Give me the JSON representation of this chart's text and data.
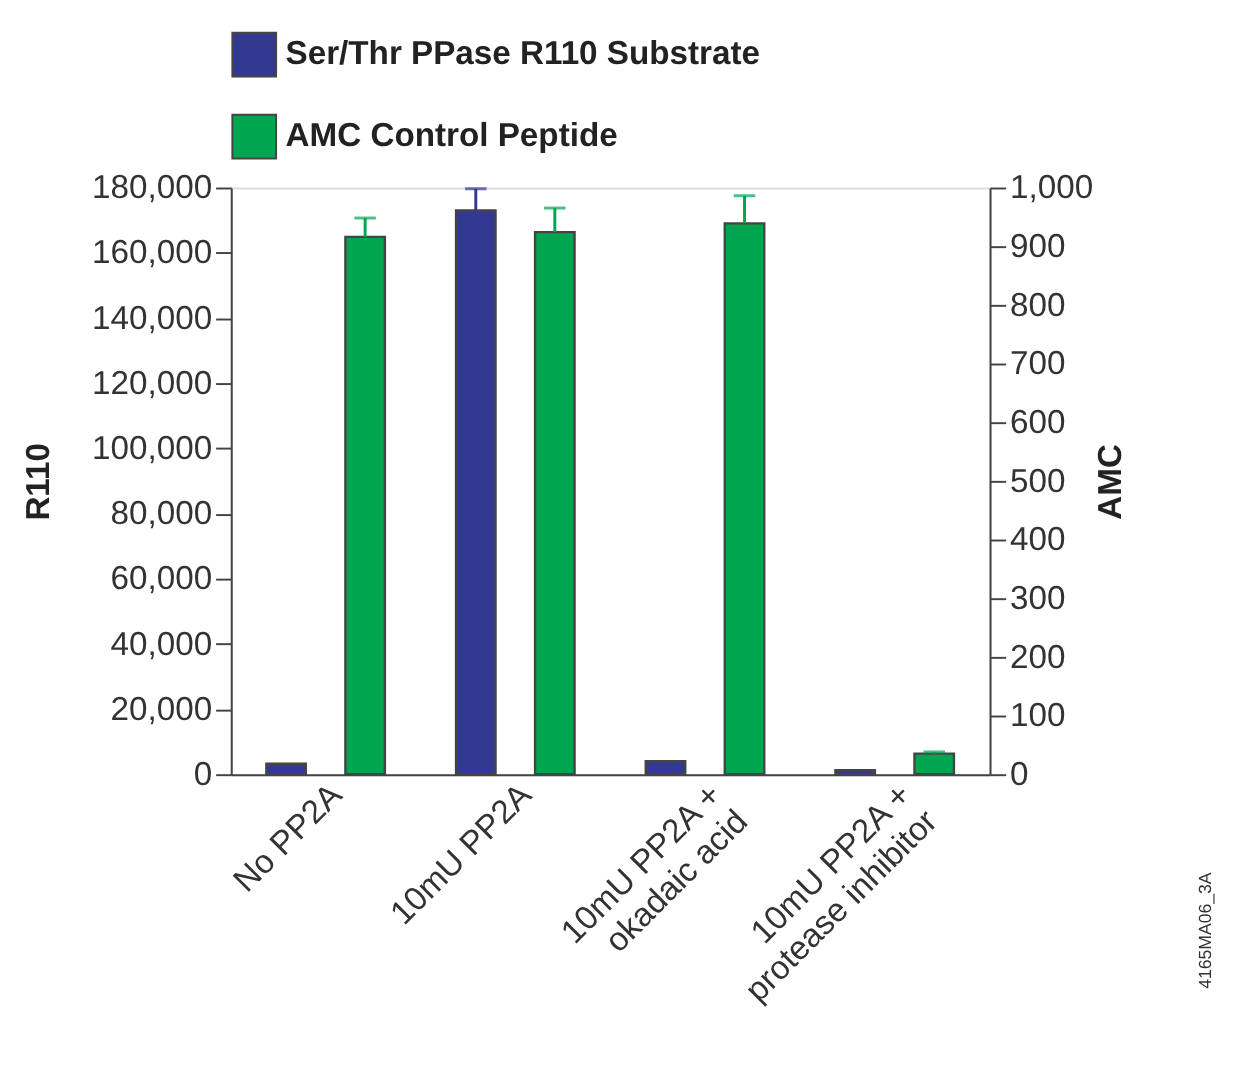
{
  "chart_data": {
    "type": "bar",
    "categories": [
      "No PP2A",
      "10mU PP2A",
      "10mU PP2A +\nokadaic acid",
      "10mU PP2A +\nprotease inhibitor"
    ],
    "series": [
      {
        "name": "Ser/Thr PPase R110 Substrate",
        "color": "#333891",
        "values": [
          3200,
          173000,
          4000,
          1200
        ],
        "errors": [
          null,
          [
            173000,
            179600
          ],
          null,
          null
        ]
      },
      {
        "name": "AMC Control Peptide",
        "color": "#00a550",
        "axis": "y2",
        "values": [
          916,
          924,
          939,
          35
        ],
        "errors": [
          [
            916,
            948
          ],
          [
            924,
            965
          ],
          [
            939,
            986
          ],
          [
            35,
            38
          ]
        ]
      }
    ],
    "ylabel": "R110",
    "y2label": "AMC",
    "ylim": [
      0,
      180000
    ],
    "yticks": [
      0,
      {
        "value": 20000,
        "label": "20,000"
      },
      {
        "value": 40000,
        "label": "40,000"
      },
      {
        "value": 60000,
        "label": "60,000"
      },
      {
        "value": 80000,
        "label": "80,000"
      },
      {
        "value": 100000,
        "label": "100,000"
      },
      {
        "value": 120000,
        "label": "120,000"
      },
      {
        "value": 140000,
        "label": "140,000"
      },
      {
        "value": 160000,
        "label": "160,000"
      },
      {
        "value": 180000,
        "label": "180,000"
      }
    ],
    "y2lim": [
      0,
      1000
    ],
    "y2ticks": [
      0,
      100,
      200,
      300,
      400,
      500,
      600,
      700,
      800,
      900,
      {
        "value": 1000,
        "label": "1,000"
      }
    ],
    "annotations": [
      "4165MA06_3A"
    ],
    "grid": false,
    "legend": "top"
  }
}
